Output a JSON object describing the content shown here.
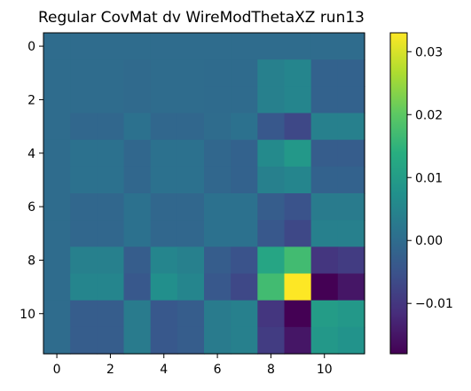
{
  "chart_data": {
    "type": "heatmap",
    "title": "Regular CovMat dv WireModThetaXZ run13",
    "xlabel": "",
    "ylabel": "",
    "x_ticks": [
      "0",
      "2",
      "4",
      "6",
      "8",
      "10"
    ],
    "y_ticks": [
      "0",
      "2",
      "4",
      "6",
      "8",
      "10"
    ],
    "x_tick_values": [
      0,
      2,
      4,
      6,
      8,
      10
    ],
    "y_tick_values": [
      0,
      2,
      4,
      6,
      8,
      10
    ],
    "n_rows": 12,
    "n_cols": 12,
    "colormap": "viridis",
    "vmin": -0.018,
    "vmax": 0.033,
    "colorbar_ticks": [
      "0.03",
      "0.02",
      "0.01",
      "0.00",
      "−0.01"
    ],
    "colorbar_tick_values": [
      0.03,
      0.02,
      0.01,
      0.0,
      -0.01
    ],
    "values": [
      [
        0.0,
        0.0,
        0.0,
        0.0,
        0.0,
        0.0,
        0.0,
        0.0,
        0.0,
        0.0,
        0.0,
        0.0
      ],
      [
        0.0,
        0.0,
        0.0,
        -0.0005,
        0.0,
        0.0,
        -0.0003,
        -0.0003,
        0.004,
        0.005,
        -0.002,
        -0.002
      ],
      [
        0.0,
        0.0,
        0.0,
        -0.0005,
        0.0,
        0.0,
        -0.0003,
        -0.0003,
        0.004,
        0.005,
        -0.002,
        -0.002
      ],
      [
        0.0,
        -0.001,
        -0.001,
        0.001,
        -0.001,
        -0.001,
        0.0,
        0.001,
        -0.004,
        -0.007,
        0.004,
        0.004
      ],
      [
        0.0,
        0.001,
        0.001,
        -0.001,
        0.001,
        0.001,
        -0.001,
        -0.002,
        0.006,
        0.009,
        -0.003,
        -0.003
      ],
      [
        0.0,
        0.001,
        0.001,
        -0.001,
        0.001,
        0.001,
        -0.001,
        -0.002,
        0.004,
        0.005,
        -0.002,
        -0.002
      ],
      [
        0.0,
        -0.001,
        -0.001,
        0.001,
        -0.001,
        -0.001,
        0.001,
        0.001,
        -0.003,
        -0.005,
        0.003,
        0.003
      ],
      [
        0.0,
        -0.001,
        -0.001,
        0.001,
        -0.001,
        -0.001,
        0.001,
        0.001,
        -0.004,
        -0.007,
        0.004,
        0.004
      ],
      [
        0.0,
        0.004,
        0.004,
        -0.003,
        0.005,
        0.004,
        -0.003,
        -0.005,
        0.012,
        0.017,
        -0.01,
        -0.009
      ],
      [
        0.0,
        0.005,
        0.005,
        -0.004,
        0.007,
        0.005,
        -0.004,
        -0.007,
        0.017,
        0.033,
        -0.018,
        -0.015
      ],
      [
        0.0,
        -0.003,
        -0.003,
        0.003,
        -0.004,
        -0.003,
        0.003,
        0.004,
        -0.01,
        -0.018,
        0.01,
        0.009
      ],
      [
        0.0,
        -0.003,
        -0.003,
        0.003,
        -0.004,
        -0.003,
        0.003,
        0.004,
        -0.009,
        -0.015,
        0.009,
        0.008
      ]
    ]
  }
}
